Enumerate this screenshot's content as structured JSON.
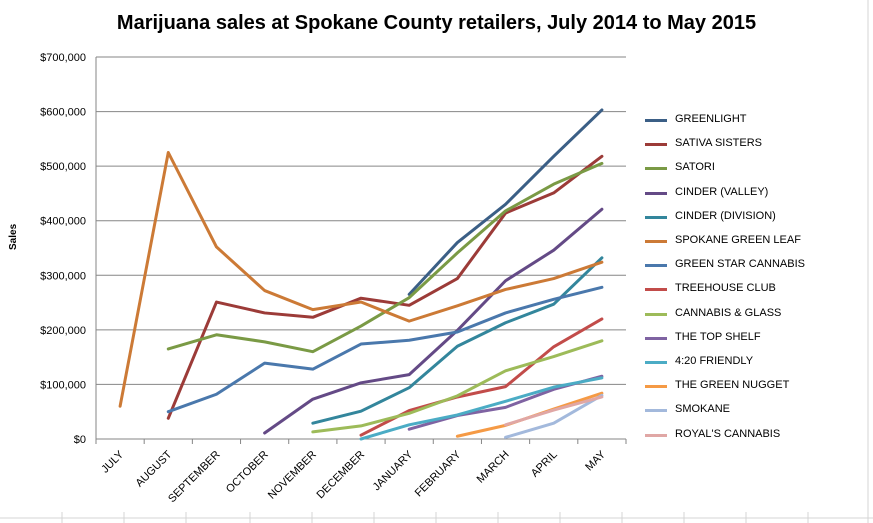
{
  "chart_data": {
    "type": "line",
    "title": "Marijuana sales at Spokane County retailers, July 2014 to May 2015",
    "xlabel": "",
    "ylabel": "Sales",
    "ylim": [
      0,
      700000
    ],
    "yticks": [
      "$0",
      "$100,000",
      "$200,000",
      "$300,000",
      "$400,000",
      "$500,000",
      "$600,000",
      "$700,000"
    ],
    "grid": true,
    "legend": "right",
    "categories": [
      "JULY",
      "AUGUST",
      "SEPTEMBER",
      "OCTOBER",
      "NOVEMBER",
      "DECEMBER",
      "JANUARY",
      "FEBRUARY",
      "MARCH",
      "APRIL",
      "MAY"
    ],
    "series": [
      {
        "name": "GREENLIGHT",
        "color": "#3B5F86",
        "values": [
          null,
          null,
          null,
          null,
          null,
          null,
          265000,
          360000,
          430000,
          518000,
          603000
        ]
      },
      {
        "name": "SATIVA SISTERS",
        "color": "#9C3B38",
        "values": [
          null,
          38000,
          251000,
          231000,
          223000,
          258000,
          245000,
          294000,
          414000,
          451000,
          518000
        ]
      },
      {
        "name": "SATORI",
        "color": "#7A9A45",
        "values": [
          null,
          165000,
          191000,
          178000,
          160000,
          207000,
          259000,
          341000,
          418000,
          467000,
          505000
        ]
      },
      {
        "name": "CINDER (VALLEY)",
        "color": "#644A86",
        "values": [
          null,
          null,
          null,
          11000,
          73000,
          103000,
          118000,
          199000,
          290000,
          346000,
          421000
        ]
      },
      {
        "name": "CINDER (DIVISION)",
        "color": "#33869C",
        "values": [
          null,
          null,
          null,
          null,
          29000,
          51000,
          94000,
          170000,
          213000,
          247000,
          332000
        ]
      },
      {
        "name": "SPOKANE GREEN LEAF",
        "color": "#CC7A36",
        "values": [
          60000,
          525000,
          352000,
          272000,
          237000,
          251000,
          216000,
          244000,
          274000,
          294000,
          324000
        ]
      },
      {
        "name": "GREEN STAR CANNABIS",
        "color": "#4A78AC",
        "values": [
          null,
          50000,
          82000,
          139000,
          128000,
          174000,
          181000,
          196000,
          231000,
          256000,
          278000
        ]
      },
      {
        "name": "TREEHOUSE CLUB",
        "color": "#C24C4A",
        "values": [
          null,
          null,
          null,
          null,
          null,
          7000,
          52000,
          77000,
          96000,
          169000,
          220000
        ]
      },
      {
        "name": "CANNABIS & GLASS",
        "color": "#9DBB59",
        "values": [
          null,
          null,
          null,
          null,
          13000,
          24000,
          47000,
          79000,
          125000,
          151000,
          180000
        ]
      },
      {
        "name": "THE TOP SHELF",
        "color": "#7F63A2",
        "values": [
          null,
          null,
          null,
          null,
          null,
          null,
          18000,
          43000,
          58000,
          91000,
          115000
        ]
      },
      {
        "name": "4:20 FRIENDLY",
        "color": "#4BACC5",
        "values": [
          null,
          null,
          null,
          null,
          null,
          0,
          26000,
          44000,
          69000,
          95000,
          112000
        ]
      },
      {
        "name": "THE GREEN NUGGET",
        "color": "#F59A45",
        "values": [
          null,
          null,
          null,
          null,
          null,
          null,
          null,
          5000,
          25000,
          55000,
          84000
        ]
      },
      {
        "name": "SMOKANE",
        "color": "#A3B9DC",
        "values": [
          null,
          null,
          null,
          null,
          null,
          null,
          null,
          null,
          3000,
          29000,
          80000
        ]
      },
      {
        "name": "ROYAL'S CANNABIS",
        "color": "#E0A7A5",
        "values": [
          null,
          null,
          null,
          null,
          null,
          null,
          null,
          null,
          26000,
          53000,
          77000
        ]
      }
    ]
  }
}
